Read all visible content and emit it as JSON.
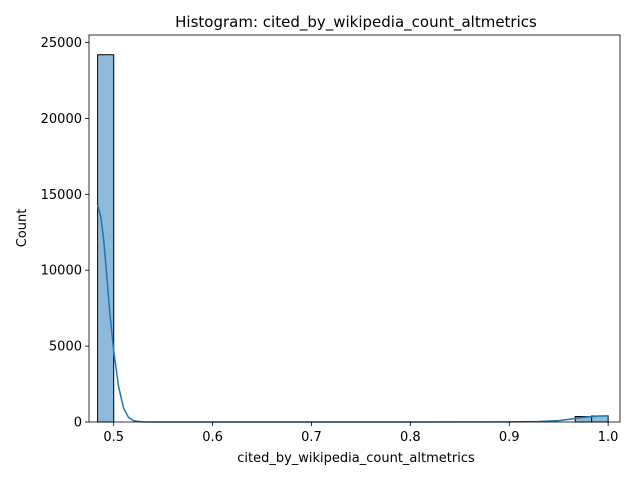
{
  "chart_data": {
    "type": "bar",
    "title": "Histogram: cited_by_wikipedia_count_altmetrics",
    "xlabel": "cited_by_wikipedia_count_altmetrics",
    "ylabel": "Count",
    "xlim": [
      0.475,
      1.012
    ],
    "ylim": [
      0,
      25500
    ],
    "xticks": [
      0.5,
      0.6,
      0.7,
      0.8,
      0.9,
      1.0
    ],
    "xtick_labels": [
      "0.5",
      "0.6",
      "0.7",
      "0.8",
      "0.9",
      "1.0"
    ],
    "yticks": [
      0,
      5000,
      10000,
      15000,
      20000,
      25000
    ],
    "ytick_labels": [
      "0",
      "5000",
      "10000",
      "15000",
      "20000",
      "25000"
    ],
    "bins": [
      {
        "x0": 0.4837,
        "x1": 0.5,
        "count": 24200
      },
      {
        "x0": 0.9667,
        "x1": 0.9833,
        "count": 360
      },
      {
        "x0": 0.9833,
        "x1": 1.0,
        "count": 400
      }
    ],
    "kde": {
      "x": [
        0.4837,
        0.487,
        0.49,
        0.493,
        0.496,
        0.5,
        0.505,
        0.51,
        0.515,
        0.52,
        0.525,
        0.53,
        0.54,
        0.6,
        0.7,
        0.8,
        0.9,
        0.93,
        0.95,
        0.96,
        0.97,
        0.98,
        0.99,
        1.0
      ],
      "y": [
        14300,
        13500,
        11900,
        9600,
        7200,
        4700,
        2300,
        900,
        300,
        90,
        30,
        10,
        0,
        0,
        0,
        0,
        5,
        30,
        90,
        170,
        260,
        340,
        390,
        400
      ]
    },
    "grid": false,
    "colors": {
      "bar_fill": "#8fb9d8",
      "bar_edge": "#000000",
      "kde_line": "#1f77b4"
    }
  }
}
